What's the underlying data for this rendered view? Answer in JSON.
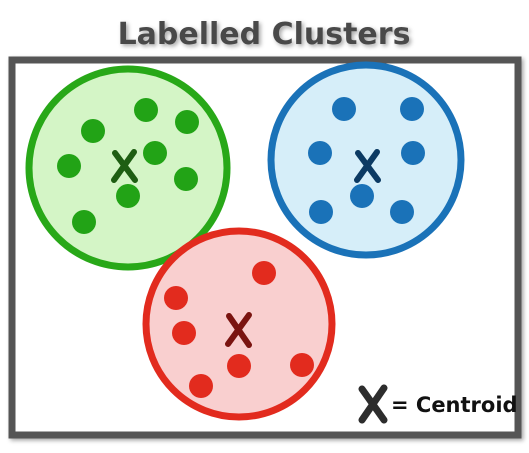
{
  "title": "Labelled Clusters",
  "legend": {
    "label": "= Centroid",
    "icon": "x-mark-icon",
    "color": "#2d2d2d"
  },
  "clusters": [
    {
      "name": "green",
      "fill": "#d4f5c6",
      "stroke": "#28a818",
      "dot": "#22a316",
      "centroid_color": "#1e5e12"
    },
    {
      "name": "blue",
      "fill": "#d6eef9",
      "stroke": "#1a72b8",
      "dot": "#1a72b8",
      "centroid_color": "#0c3a63"
    },
    {
      "name": "red",
      "fill": "#f9cfcf",
      "stroke": "#e22b1e",
      "dot": "#e22b1e",
      "centroid_color": "#7a1410"
    }
  ]
}
